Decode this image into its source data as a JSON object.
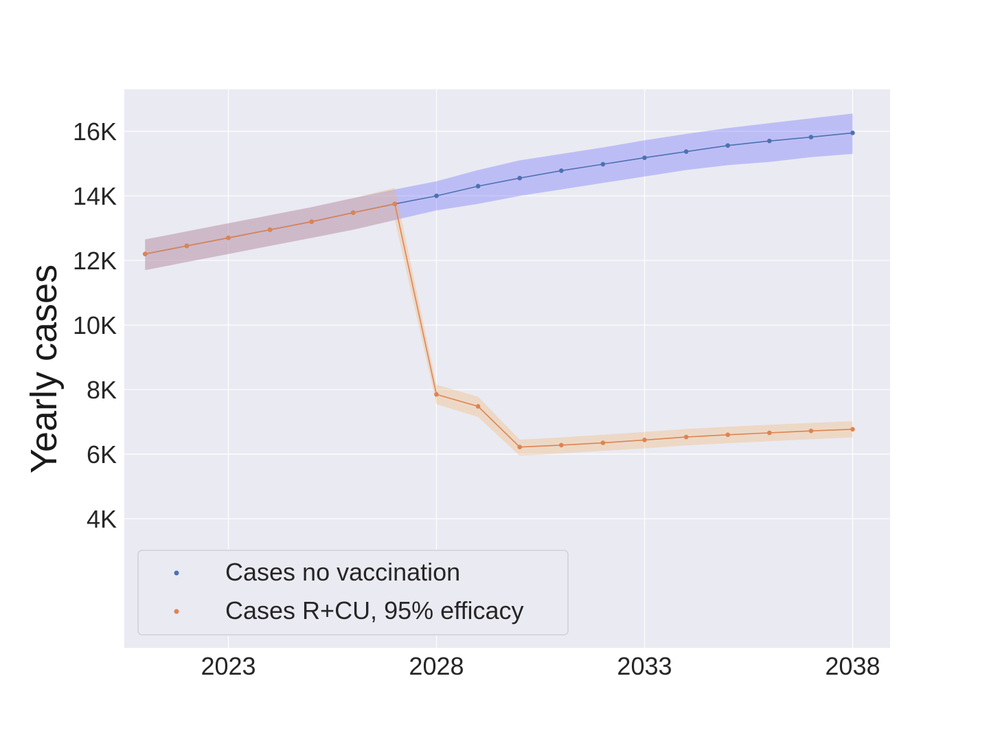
{
  "chart_data": {
    "type": "line",
    "title": "",
    "xlabel": "",
    "ylabel": "Yearly cases",
    "x_ticks": [
      2023,
      2028,
      2033,
      2038
    ],
    "x_tick_labels": [
      "2023",
      "2028",
      "2033",
      "2038"
    ],
    "y_ticks": [
      4000,
      6000,
      8000,
      10000,
      12000,
      14000,
      16000
    ],
    "y_tick_labels": [
      "4K",
      "6K",
      "8K",
      "10K",
      "12K",
      "14K",
      "16K"
    ],
    "xlim": [
      2020.5,
      2038.9
    ],
    "ylim": [
      0,
      17300
    ],
    "grid": true,
    "legend_position": "lower-left",
    "series": [
      {
        "name": "Cases no vaccination",
        "color": "#4c72b0",
        "band_color": "#6b6bff",
        "x": [
          2021,
          2022,
          2023,
          2024,
          2025,
          2026,
          2027,
          2028,
          2029,
          2030,
          2031,
          2032,
          2033,
          2034,
          2035,
          2036,
          2037,
          2038
        ],
        "y": [
          12200,
          12450,
          12700,
          12950,
          13200,
          13480,
          13750,
          14000,
          14300,
          14550,
          14780,
          14980,
          15180,
          15370,
          15560,
          15700,
          15820,
          15950
        ],
        "lower": [
          11700,
          11950,
          12200,
          12450,
          12700,
          12950,
          13250,
          13550,
          13750,
          14000,
          14200,
          14400,
          14600,
          14800,
          14950,
          15050,
          15200,
          15300
        ],
        "upper": [
          12650,
          12900,
          13150,
          13400,
          13650,
          13930,
          14200,
          14450,
          14800,
          15100,
          15300,
          15500,
          15720,
          15920,
          16100,
          16250,
          16400,
          16550
        ]
      },
      {
        "name": "Cases R+CU, 95% efficacy",
        "color": "#dd8452",
        "band_color": "#f5b161",
        "x": [
          2021,
          2022,
          2023,
          2024,
          2025,
          2026,
          2027,
          2028,
          2029,
          2030,
          2031,
          2032,
          2033,
          2034,
          2035,
          2036,
          2037,
          2038
        ],
        "y": [
          12200,
          12450,
          12700,
          12950,
          13200,
          13480,
          13750,
          7850,
          7480,
          6220,
          6280,
          6350,
          6440,
          6530,
          6600,
          6660,
          6720,
          6770
        ],
        "lower": [
          11700,
          11950,
          12200,
          12450,
          12700,
          12950,
          13250,
          7550,
          7150,
          5950,
          6020,
          6100,
          6180,
          6270,
          6340,
          6400,
          6460,
          6520
        ],
        "upper": [
          12650,
          12900,
          13150,
          13400,
          13650,
          13930,
          14250,
          8150,
          7780,
          6450,
          6520,
          6600,
          6690,
          6780,
          6850,
          6910,
          6970,
          7020
        ]
      }
    ]
  }
}
